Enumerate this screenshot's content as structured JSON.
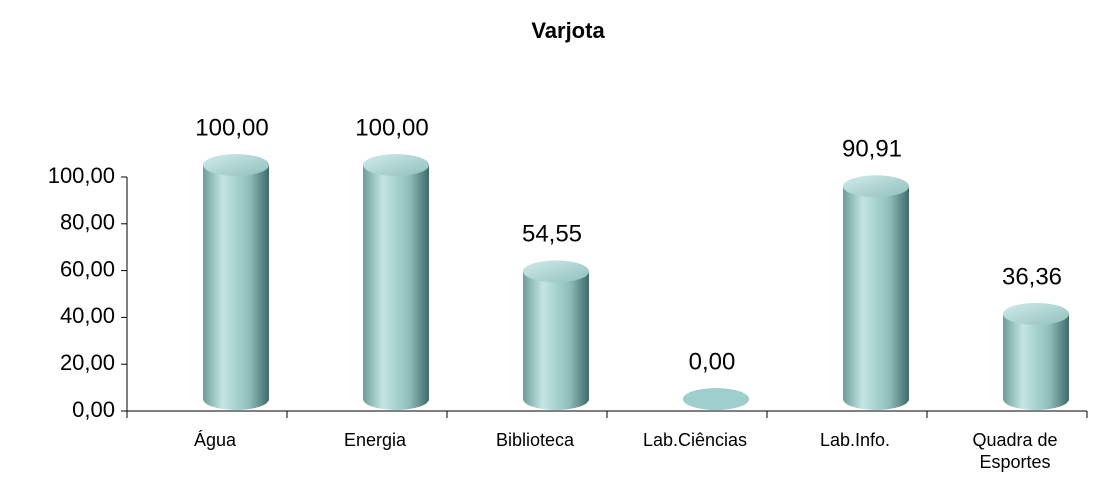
{
  "chart_data": {
    "type": "bar",
    "title": "Varjota",
    "categories": [
      "Água",
      "Energia",
      "Biblioteca",
      "Lab.Ciências",
      "Lab.Info.",
      "Quadra de Esportes"
    ],
    "values": [
      100,
      100,
      54.55,
      0,
      90.91,
      36.36
    ],
    "value_labels": [
      "100,00",
      "100,00",
      "54,55",
      "0,00",
      "90,91",
      "36,36"
    ],
    "color": "#9fcfcc",
    "ylim": [
      0,
      100
    ],
    "yticks": [
      {
        "value": 0,
        "label": "0,00"
      },
      {
        "value": 20,
        "label": "20,00"
      },
      {
        "value": 40,
        "label": "40,00"
      },
      {
        "value": 60,
        "label": "60,00"
      },
      {
        "value": 80,
        "label": "80,00"
      },
      {
        "value": 100,
        "label": "100,00"
      }
    ],
    "grid": false
  }
}
